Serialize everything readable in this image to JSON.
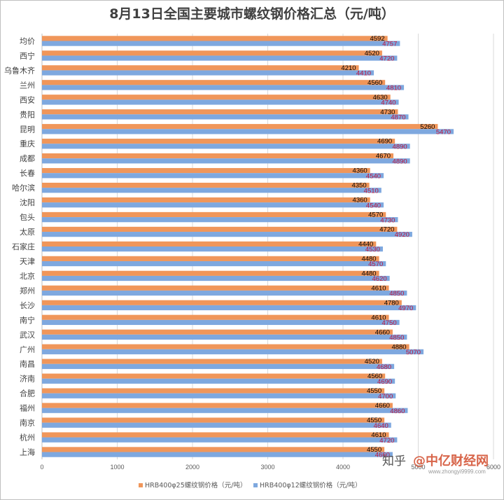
{
  "chart_data": {
    "type": "bar",
    "orientation": "horizontal",
    "title": "8月13日全国主要城市螺纹钢价格汇总（元/吨）",
    "categories": [
      "均价",
      "西宁",
      "乌鲁木齐",
      "兰州",
      "西安",
      "贵阳",
      "昆明",
      "重庆",
      "成都",
      "长春",
      "哈尔滨",
      "沈阳",
      "包头",
      "太原",
      "石家庄",
      "天津",
      "北京",
      "郑州",
      "长沙",
      "南宁",
      "武汉",
      "广州",
      "南昌",
      "济南",
      "合肥",
      "福州",
      "南京",
      "杭州",
      "上海"
    ],
    "series": [
      {
        "name": "HRB400φ25螺纹钢价格（元/吨）",
        "color": "#f0965a",
        "values": [
          4592,
          4520,
          4210,
          4560,
          4630,
          4730,
          5260,
          4690,
          4670,
          4360,
          4350,
          4360,
          4570,
          4720,
          4440,
          4480,
          4480,
          4610,
          4780,
          4610,
          4660,
          4880,
          4520,
          4560,
          4550,
          4660,
          4550,
          4610,
          4550
        ]
      },
      {
        "name": "HRB400φ12螺纹钢价格（元/吨）",
        "color": "#7ea8df",
        "values": [
          4757,
          4720,
          4410,
          4810,
          4740,
          4870,
          5470,
          4890,
          4890,
          4540,
          4510,
          4540,
          4730,
          4920,
          4530,
          4570,
          4620,
          4850,
          4970,
          4750,
          4850,
          5070,
          4680,
          4690,
          4700,
          4860,
          4640,
          4720,
          4660
        ]
      }
    ],
    "xlim": [
      0,
      6000
    ],
    "xticks": [
      0,
      1000,
      2000,
      3000,
      4000,
      5000,
      6000
    ],
    "grid": true,
    "legend": "bottom"
  },
  "watermark": {
    "text1": "知乎",
    "text2": "@中亿财经网",
    "url": "www.zhongyi9999.com"
  }
}
